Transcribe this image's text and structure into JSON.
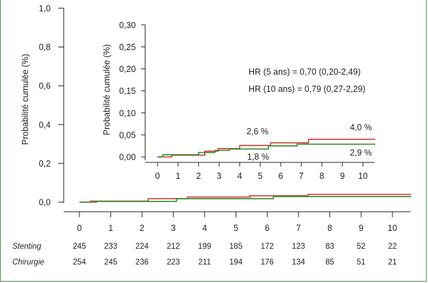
{
  "chart_data": [
    {
      "type": "line",
      "ylabel": "Probabilité cumulée (%)",
      "xlim": [
        0,
        10
      ],
      "ylim": [
        0,
        1
      ],
      "x_ticks": [
        0,
        1,
        2,
        3,
        4,
        5,
        6,
        7,
        8,
        9,
        10
      ],
      "x_tick_labels": [
        "0",
        "1",
        "2",
        "3",
        "4",
        "5",
        "6",
        "7",
        "8",
        "9",
        "10"
      ],
      "y_ticks": [
        0,
        0.2,
        0.4,
        0.6,
        0.8,
        1.0
      ],
      "y_tick_labels": [
        "0,0",
        "0,2",
        "0,4",
        "0,6",
        "0,8",
        "1,0"
      ],
      "series": [
        {
          "color": "#d2372f",
          "x": [
            0,
            0.35,
            0.35,
            2.2,
            2.2,
            3.45,
            3.45,
            5.45,
            5.45,
            7.3,
            7.3,
            10.6
          ],
          "y": [
            0,
            0,
            0.005,
            0.005,
            0.018,
            0.018,
            0.026,
            0.026,
            0.033,
            0.033,
            0.04,
            0.04
          ]
        },
        {
          "color": "#2f8a2e",
          "x": [
            0,
            0.55,
            0.55,
            3.1,
            3.1,
            6.2,
            6.2,
            10.6
          ],
          "y": [
            0,
            0,
            0.004,
            0.004,
            0.018,
            0.018,
            0.029,
            0.029
          ]
        }
      ],
      "risk_table": {
        "rows": [
          {
            "label": "Stenting",
            "values": [
              "245",
              "233",
              "224",
              "212",
              "199",
              "185",
              "172",
              "123",
              "83",
              "52",
              "22"
            ]
          },
          {
            "label": "Chirurgie",
            "values": [
              "254",
              "245",
              "236",
              "223",
              "211",
              "194",
              "176",
              "134",
              "85",
              "51",
              "21"
            ]
          }
        ]
      }
    },
    {
      "type": "line",
      "ylabel": "Probabilité cumulée (%)",
      "xlim": [
        0,
        10
      ],
      "ylim": [
        0,
        0.3
      ],
      "x_ticks": [
        0,
        1,
        2,
        3,
        4,
        5,
        6,
        7,
        8,
        9,
        10
      ],
      "x_tick_labels": [
        "0",
        "1",
        "2",
        "3",
        "4",
        "5",
        "6",
        "7",
        "8",
        "9",
        "10"
      ],
      "y_ticks": [
        0,
        0.05,
        0.1,
        0.15,
        0.2,
        0.25,
        0.3
      ],
      "y_tick_labels": [
        "0,00",
        "0,05",
        "0,10",
        "0,15",
        "0,20",
        "0,25",
        "0,30"
      ],
      "series": [
        {
          "color": "#d2372f",
          "x": [
            0,
            0.7,
            0.7,
            2.3,
            2.3,
            2.95,
            2.95,
            4.0,
            4.0,
            5.5,
            5.5,
            7.35,
            7.35,
            10.6
          ],
          "y": [
            0.0,
            0.0,
            0.004,
            0.004,
            0.013,
            0.013,
            0.019,
            0.019,
            0.026,
            0.026,
            0.032,
            0.032,
            0.04,
            0.04
          ]
        },
        {
          "color": "#2f8a2e",
          "x": [
            0,
            0.25,
            0.25,
            2.0,
            2.0,
            2.8,
            2.8,
            3.5,
            3.5,
            5.4,
            5.4,
            6.8,
            6.8,
            10.6
          ],
          "y": [
            0.0,
            0.0,
            0.005,
            0.005,
            0.01,
            0.01,
            0.015,
            0.015,
            0.018,
            0.018,
            0.025,
            0.025,
            0.029,
            0.029
          ]
        }
      ],
      "annotations": {
        "hr5": "HR (5 ans) = 0,70 (0,20-2,49)",
        "hr10": "HR (10 ans) = 0,79 (0,27-2,29)",
        "label_26": "2,6 %",
        "label_18": "1,8 %",
        "label_40": "4,0 %",
        "label_29": "2,9 %"
      }
    }
  ]
}
